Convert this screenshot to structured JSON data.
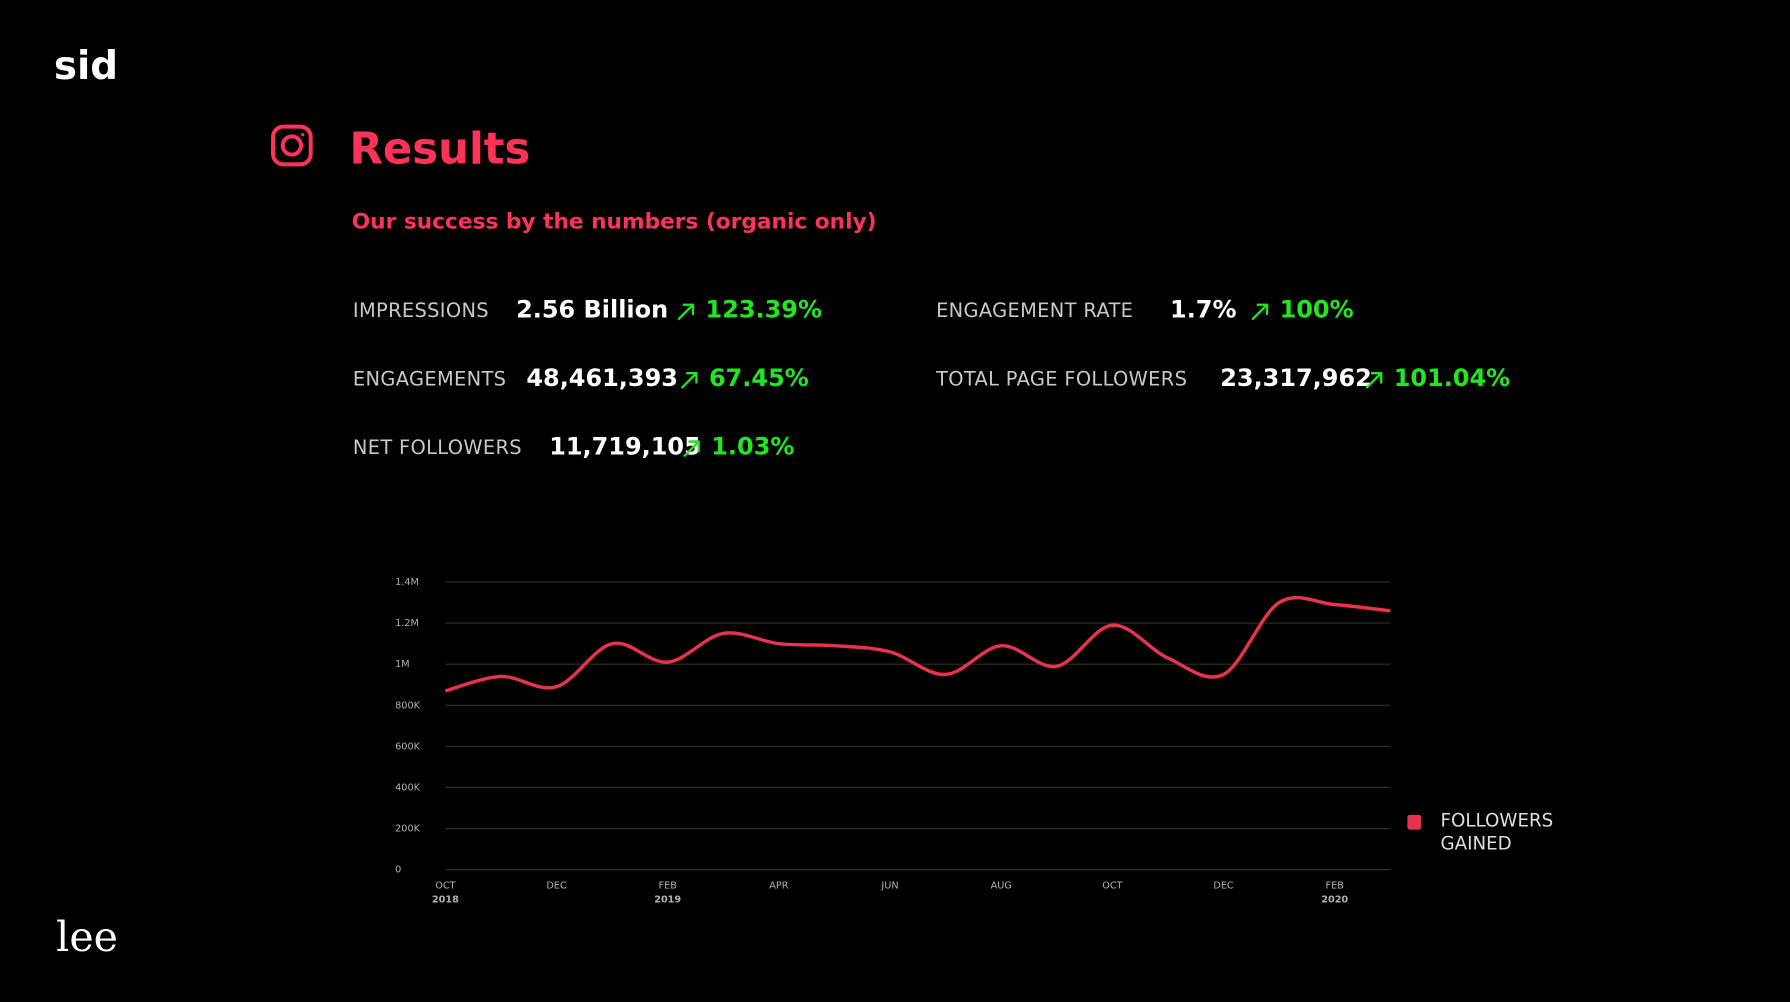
{
  "brand": {
    "top": "sid",
    "bottom": "lee"
  },
  "header": {
    "title": "Results",
    "subtitle": "Our success by the numbers (organic only)"
  },
  "stats": [
    {
      "label": "IMPRESSIONS",
      "value": "2.56 Billion",
      "change": "123.39%"
    },
    {
      "label": "ENGAGEMENTS",
      "value": "48,461,393",
      "change": "67.45%"
    },
    {
      "label": "NET FOLLOWERS",
      "value": "11,719,105",
      "change": "1.03%"
    },
    {
      "label": "ENGAGEMENT RATE",
      "value": "1.7%",
      "change": "100%"
    },
    {
      "label": "TOTAL PAGE FOLLOWERS",
      "value": "23,317,962",
      "change": "101.04%"
    }
  ],
  "chart_data": {
    "type": "line",
    "categories": [
      "OCT",
      null,
      "DEC",
      null,
      "FEB",
      null,
      "APR",
      null,
      "JUN",
      null,
      "AUG",
      null,
      "OCT",
      null,
      "DEC",
      null,
      "FEB",
      null
    ],
    "category_years": [
      "2018",
      null,
      null,
      null,
      "2019",
      null,
      null,
      null,
      null,
      null,
      null,
      null,
      null,
      null,
      null,
      null,
      "2020",
      null
    ],
    "series": [
      {
        "name": "FOLLOWERS GAINED",
        "color": "#e8334f",
        "values": [
          870000,
          940000,
          890000,
          1100000,
          1010000,
          1150000,
          1100000,
          1090000,
          1060000,
          950000,
          1090000,
          990000,
          1190000,
          1030000,
          950000,
          1300000,
          1290000,
          1260000
        ]
      }
    ],
    "ylim": [
      0,
      1400000
    ],
    "yticks": [
      0,
      {
        "value": 200000,
        "label": "200K"
      },
      {
        "value": 400000,
        "label": "400K"
      },
      {
        "value": 600000,
        "label": "600K"
      },
      {
        "value": 800000,
        "label": "800K"
      },
      {
        "value": 1000000,
        "label": "1M"
      },
      {
        "value": 1200000,
        "label": "1.2M"
      },
      {
        "value": 1400000,
        "label": "1.4M"
      }
    ],
    "grid": true
  }
}
